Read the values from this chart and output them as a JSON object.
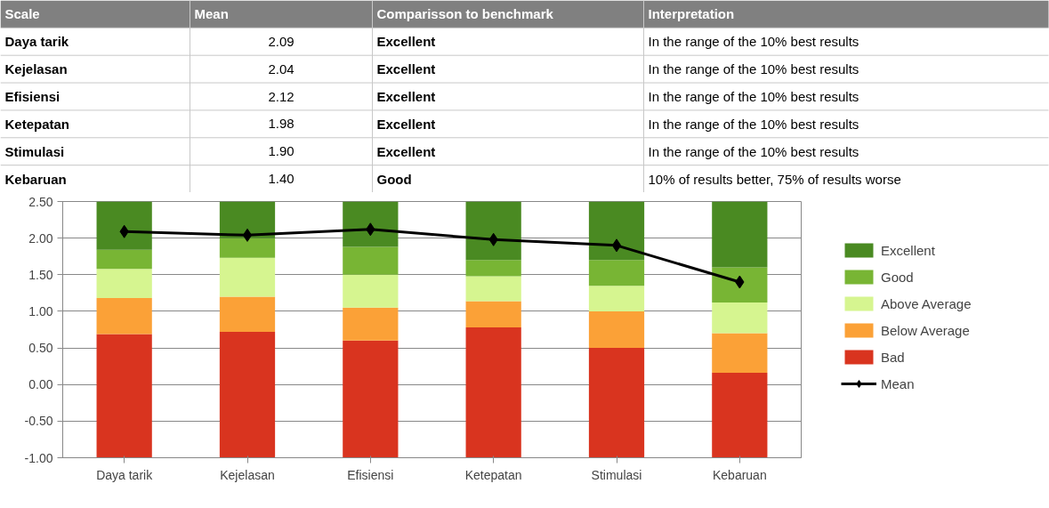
{
  "chart_data": {
    "type": "bar",
    "categories": [
      "Daya tarik",
      "Kejelasan",
      "Efisiensi",
      "Ketepatan",
      "Stimulasi",
      "Kebaruan"
    ],
    "series": [
      {
        "name": "Bad",
        "color": "#d9341f",
        "base": [
          -1,
          -1,
          -1,
          -1,
          -1,
          -1
        ],
        "values": [
          1.69,
          1.72,
          1.6,
          1.78,
          1.5,
          1.16
        ]
      },
      {
        "name": "Below Average",
        "color": "#fba137",
        "base": [
          0.69,
          0.72,
          0.6,
          0.78,
          0.5,
          0.16
        ],
        "values": [
          0.49,
          0.48,
          0.45,
          0.36,
          0.5,
          0.54
        ]
      },
      {
        "name": "Above Average",
        "color": "#d6f590",
        "base": [
          1.18,
          1.2,
          1.05,
          1.14,
          1.0,
          0.7
        ],
        "values": [
          0.4,
          0.53,
          0.45,
          0.34,
          0.35,
          0.42
        ]
      },
      {
        "name": "Good",
        "color": "#78b534",
        "base": [
          1.58,
          1.73,
          1.5,
          1.48,
          1.35,
          1.12
        ],
        "values": [
          0.26,
          0.27,
          0.38,
          0.22,
          0.35,
          0.48
        ]
      },
      {
        "name": "Excellent",
        "color": "#4a8a22",
        "base": [
          1.84,
          2.0,
          1.88,
          1.7,
          1.7,
          1.6
        ],
        "values": [
          0.66,
          0.5,
          0.62,
          0.8,
          0.8,
          0.9
        ]
      },
      {
        "name": "Mean",
        "type": "line",
        "color": "#000000",
        "marker": "diamond",
        "values": [
          2.09,
          2.04,
          2.12,
          1.98,
          1.9,
          1.4
        ]
      }
    ],
    "ylim": [
      -1,
      2.5
    ],
    "yticks": [
      {
        "value": -1,
        "label": "-1.00"
      },
      {
        "value": -0.5,
        "label": "-0.50"
      },
      {
        "value": 0,
        "label": "0.00"
      },
      {
        "value": 0.5,
        "label": "0.50"
      },
      {
        "value": 1,
        "label": "1.00"
      },
      {
        "value": 1.5,
        "label": "1.50"
      },
      {
        "value": 2,
        "label": "2.00"
      },
      {
        "value": 2.5,
        "label": "2.50"
      }
    ],
    "grid": "y",
    "legend": "right",
    "annotations": [
      "Scale",
      "Mean",
      "Comparisson to benchmark",
      "Interpretation",
      "2.09",
      "Excellent",
      "In the range of the 10% best results",
      "2.04",
      "Excellent",
      "In the range of the 10% best results",
      "2.12",
      "Excellent",
      "In the range of the 10% best results",
      "1.98",
      "Excellent",
      "In the range of the 10% best results",
      "1.90",
      "Excellent",
      "In the range of the 10% best results",
      "1.40",
      "Good",
      "10% of results better, 75% of results worse"
    ]
  }
}
